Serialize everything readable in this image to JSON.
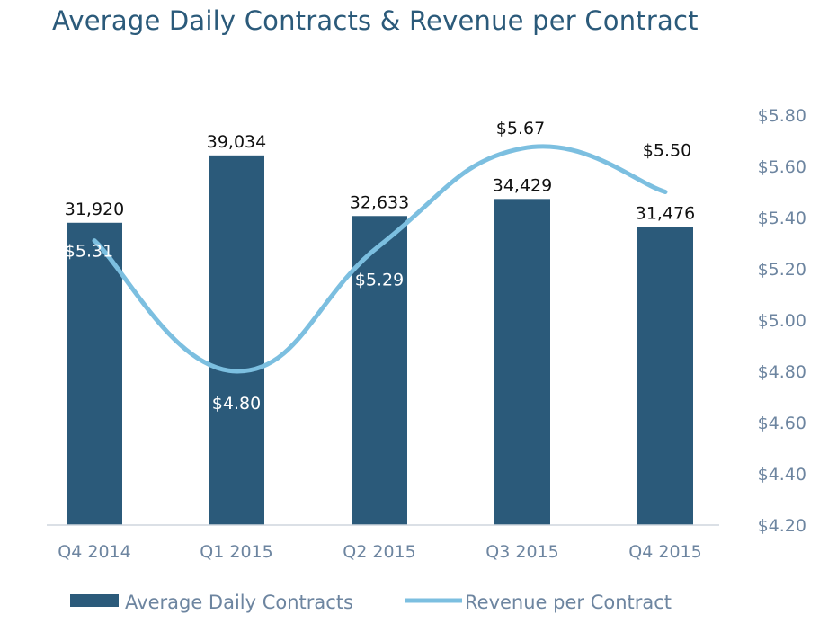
{
  "chart_data": {
    "type": "bar",
    "title": "Average Daily Contracts & Revenue per Contract",
    "categories": [
      "Q4 2014",
      "Q1 2015",
      "Q2 2015",
      "Q3 2015",
      "Q4 2015"
    ],
    "series": [
      {
        "name": "Average Daily Contracts",
        "type": "bar",
        "values": [
          31920,
          39034,
          32633,
          34429,
          31476
        ],
        "labels": [
          "31,920",
          "39,034",
          "32,633",
          "34,429",
          "31,476"
        ],
        "axis": "left"
      },
      {
        "name": "Revenue per Contract",
        "type": "line",
        "values": [
          5.31,
          4.8,
          5.29,
          5.67,
          5.5
        ],
        "labels": [
          "$5.31",
          "$4.80",
          "$5.29",
          "$5.67",
          "$5.50"
        ],
        "axis": "right"
      }
    ],
    "left_axis": {
      "range": [
        0,
        45000
      ],
      "tick_labels_visible": false
    },
    "right_axis": {
      "range": [
        4.2,
        5.8
      ],
      "ticks": [
        "$5.80",
        "$5.60",
        "$5.40",
        "$5.20",
        "$5.00",
        "$4.80",
        "$4.60",
        "$4.40",
        "$4.20"
      ]
    },
    "grid": false,
    "legend_position": "bottom-left",
    "colors": {
      "bar": "#2b5a7a",
      "line": "#7cbfe0",
      "title": "#2b5a7a",
      "axis_text": "#6d85a0",
      "baseline": "#cfd6dd"
    }
  }
}
